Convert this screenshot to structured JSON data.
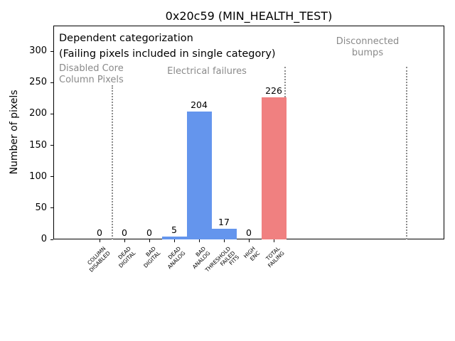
{
  "title": "0x20c59 (MIN_HEALTH_TEST)",
  "ylabel": "Number of pixels",
  "annotations": {
    "dependent_line1": "Dependent categorization",
    "dependent_line2": "(Failing pixels included in single category)",
    "region_disabled": "Disabled Core\nColumn Pixels",
    "region_electrical": "Electrical failures",
    "region_disconnected": "Disconnected\nbumps"
  },
  "colors": {
    "bar_default": "#6495ed",
    "bar_total": "#f08080",
    "region_text": "#8a8a8a",
    "divider": "#8c8c8c"
  },
  "chart_data": {
    "type": "bar",
    "title": "0x20c59 (MIN_HEALTH_TEST)",
    "xlabel": "",
    "ylabel": "Number of pixels",
    "categories": [
      "COLUMN\nDISABLED",
      "DEAD\nDIGITAL",
      "BAD\nDIGITAL",
      "DEAD\nANALOG",
      "BAD\nANALOG",
      "THRESHOLD\nFAILED\nFITS",
      "HIGH\nENC",
      "TOTAL\nFAILING"
    ],
    "values": [
      0,
      0,
      0,
      5,
      204,
      17,
      0,
      226
    ],
    "bar_value_labels": [
      "0",
      "0",
      "0",
      "5",
      "204",
      "17",
      "0",
      "226"
    ],
    "bar_colors": [
      "#6495ed",
      "#6495ed",
      "#6495ed",
      "#6495ed",
      "#6495ed",
      "#6495ed",
      "#6495ed",
      "#f08080"
    ],
    "yticks": [
      0,
      50,
      100,
      150,
      200,
      250,
      300
    ],
    "ylim": [
      0,
      341
    ],
    "grid": false,
    "legend": null,
    "region_labels": [
      "Disabled Core Column Pixels",
      "Electrical failures",
      "Disconnected bumps"
    ],
    "divider_positions": [
      0.5,
      7.47,
      12.34
    ]
  }
}
